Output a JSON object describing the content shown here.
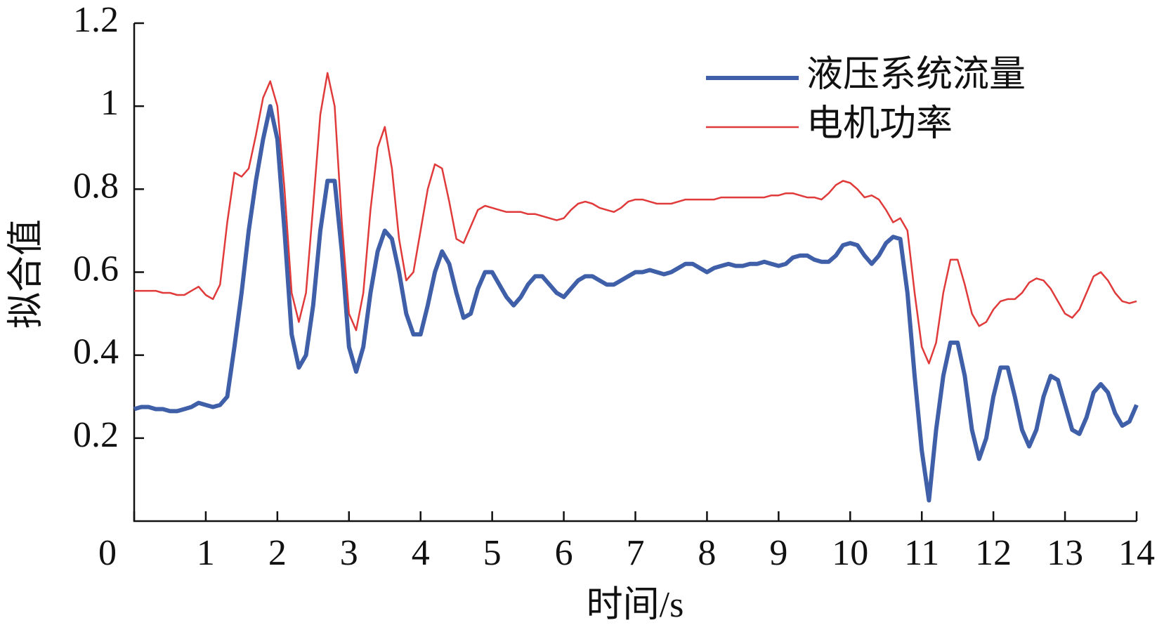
{
  "chart_data": {
    "type": "line",
    "x_label": "时间/s",
    "y_label": "拟合值",
    "x": [
      0,
      0.1,
      0.2,
      0.3,
      0.4,
      0.5,
      0.6,
      0.7,
      0.8,
      0.9,
      1,
      1.1,
      1.2,
      1.3,
      1.4,
      1.5,
      1.6,
      1.7,
      1.8,
      1.9,
      2,
      2.1,
      2.2,
      2.3,
      2.4,
      2.5,
      2.6,
      2.7,
      2.8,
      2.9,
      3,
      3.1,
      3.2,
      3.3,
      3.4,
      3.5,
      3.6,
      3.7,
      3.8,
      3.9,
      4,
      4.1,
      4.2,
      4.3,
      4.4,
      4.5,
      4.6,
      4.7,
      4.8,
      4.9,
      5,
      5.1,
      5.2,
      5.3,
      5.4,
      5.5,
      5.6,
      5.7,
      5.8,
      5.9,
      6,
      6.1,
      6.2,
      6.3,
      6.4,
      6.5,
      6.6,
      6.7,
      6.8,
      6.9,
      7,
      7.1,
      7.2,
      7.3,
      7.4,
      7.5,
      7.6,
      7.7,
      7.8,
      7.9,
      8,
      8.1,
      8.2,
      8.3,
      8.4,
      8.5,
      8.6,
      8.7,
      8.8,
      8.9,
      9,
      9.1,
      9.2,
      9.3,
      9.4,
      9.5,
      9.6,
      9.7,
      9.8,
      9.9,
      10,
      10.1,
      10.2,
      10.3,
      10.4,
      10.5,
      10.6,
      10.7,
      10.8,
      10.9,
      11,
      11.1,
      11.2,
      11.3,
      11.4,
      11.5,
      11.6,
      11.7,
      11.8,
      11.9,
      12,
      12.1,
      12.2,
      12.3,
      12.4,
      12.5,
      12.6,
      12.7,
      12.8,
      12.9,
      13,
      13.1,
      13.2,
      13.3,
      13.4,
      13.5,
      13.6,
      13.7,
      13.8,
      13.9,
      14
    ],
    "series": [
      {
        "name": "液压系统流量",
        "color": "#3f5fa8",
        "values": [
          0.27,
          0.275,
          0.275,
          0.27,
          0.27,
          0.265,
          0.265,
          0.27,
          0.275,
          0.285,
          0.28,
          0.275,
          0.28,
          0.3,
          0.42,
          0.55,
          0.7,
          0.82,
          0.92,
          1.0,
          0.92,
          0.7,
          0.45,
          0.37,
          0.4,
          0.52,
          0.7,
          0.82,
          0.82,
          0.65,
          0.42,
          0.36,
          0.42,
          0.55,
          0.65,
          0.7,
          0.68,
          0.6,
          0.5,
          0.45,
          0.45,
          0.52,
          0.6,
          0.65,
          0.62,
          0.55,
          0.49,
          0.5,
          0.56,
          0.6,
          0.6,
          0.57,
          0.54,
          0.52,
          0.54,
          0.57,
          0.59,
          0.59,
          0.57,
          0.55,
          0.54,
          0.56,
          0.58,
          0.59,
          0.59,
          0.58,
          0.57,
          0.57,
          0.58,
          0.59,
          0.6,
          0.6,
          0.605,
          0.6,
          0.595,
          0.6,
          0.61,
          0.62,
          0.62,
          0.61,
          0.6,
          0.61,
          0.615,
          0.62,
          0.615,
          0.615,
          0.62,
          0.62,
          0.625,
          0.62,
          0.615,
          0.62,
          0.635,
          0.64,
          0.64,
          0.63,
          0.625,
          0.625,
          0.64,
          0.665,
          0.67,
          0.665,
          0.64,
          0.62,
          0.64,
          0.67,
          0.685,
          0.68,
          0.55,
          0.35,
          0.17,
          0.05,
          0.22,
          0.35,
          0.43,
          0.43,
          0.35,
          0.22,
          0.15,
          0.2,
          0.3,
          0.37,
          0.37,
          0.3,
          0.22,
          0.18,
          0.22,
          0.3,
          0.35,
          0.34,
          0.28,
          0.22,
          0.21,
          0.25,
          0.31,
          0.33,
          0.31,
          0.26,
          0.23,
          0.24,
          0.28
        ]
      },
      {
        "name": "电机功率",
        "color": "#e03a3a",
        "values": [
          0.555,
          0.555,
          0.555,
          0.555,
          0.55,
          0.55,
          0.545,
          0.545,
          0.555,
          0.565,
          0.545,
          0.535,
          0.57,
          0.72,
          0.84,
          0.83,
          0.85,
          0.93,
          1.02,
          1.06,
          1.0,
          0.8,
          0.55,
          0.48,
          0.55,
          0.76,
          0.98,
          1.08,
          1.0,
          0.72,
          0.5,
          0.46,
          0.55,
          0.75,
          0.9,
          0.95,
          0.85,
          0.68,
          0.58,
          0.6,
          0.7,
          0.8,
          0.86,
          0.85,
          0.77,
          0.68,
          0.67,
          0.71,
          0.75,
          0.76,
          0.755,
          0.75,
          0.745,
          0.745,
          0.745,
          0.74,
          0.74,
          0.735,
          0.73,
          0.725,
          0.73,
          0.75,
          0.765,
          0.77,
          0.765,
          0.755,
          0.75,
          0.745,
          0.755,
          0.77,
          0.775,
          0.775,
          0.77,
          0.765,
          0.765,
          0.765,
          0.77,
          0.775,
          0.775,
          0.775,
          0.775,
          0.775,
          0.78,
          0.78,
          0.78,
          0.78,
          0.78,
          0.78,
          0.78,
          0.785,
          0.785,
          0.79,
          0.79,
          0.785,
          0.78,
          0.78,
          0.775,
          0.79,
          0.81,
          0.82,
          0.815,
          0.8,
          0.78,
          0.785,
          0.775,
          0.75,
          0.72,
          0.73,
          0.7,
          0.55,
          0.42,
          0.38,
          0.43,
          0.55,
          0.63,
          0.63,
          0.57,
          0.5,
          0.47,
          0.48,
          0.51,
          0.53,
          0.535,
          0.535,
          0.55,
          0.575,
          0.585,
          0.58,
          0.56,
          0.53,
          0.5,
          0.49,
          0.51,
          0.55,
          0.59,
          0.6,
          0.58,
          0.55,
          0.53,
          0.525,
          0.53
        ]
      }
    ],
    "xlim": [
      0,
      14
    ],
    "xticks": [
      0,
      1,
      2,
      3,
      4,
      5,
      6,
      7,
      8,
      9,
      10,
      11,
      12,
      13,
      14
    ],
    "ylim": [
      0,
      1.2
    ],
    "yticks": [
      0.2,
      0.4,
      0.6,
      0.8,
      1.0,
      1.2
    ],
    "grid": false,
    "legend": "upper right"
  }
}
